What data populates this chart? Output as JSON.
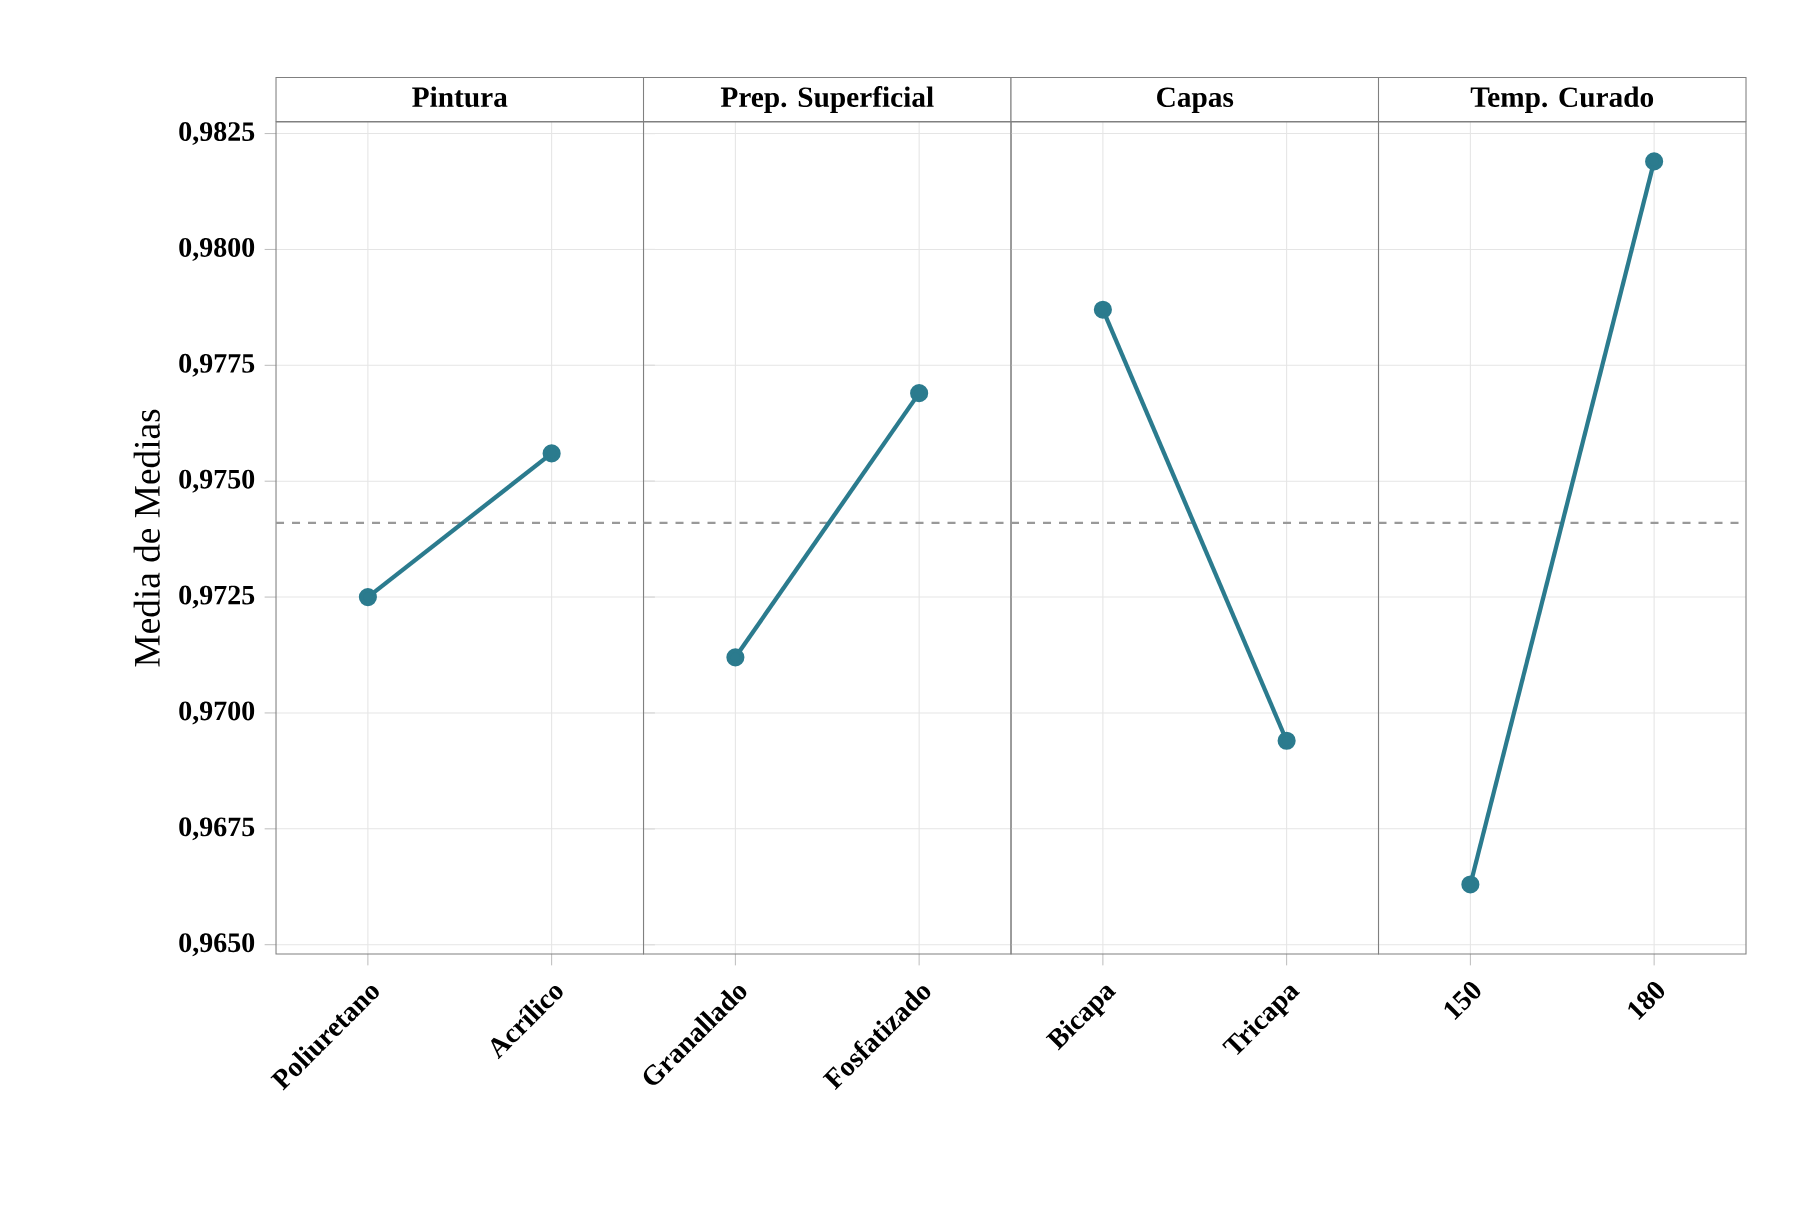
{
  "chart_data": [
    {
      "type": "line",
      "title": "Pintura",
      "ylabel": "Media de Medias",
      "categories": [
        "Poliuretano",
        "Acrílico"
      ],
      "values": [
        0.9725,
        0.9756
      ],
      "color": "#2b7b8e",
      "marker": "circle",
      "grid": true,
      "ylim": [
        0.9648,
        0.98275
      ],
      "yticks": [
        {
          "value": 0.965,
          "label": "0,9650"
        },
        {
          "value": 0.9675,
          "label": "0,9675"
        },
        {
          "value": 0.97,
          "label": "0,9700"
        },
        {
          "value": 0.9725,
          "label": "0,9725"
        },
        {
          "value": 0.975,
          "label": "0,9750"
        },
        {
          "value": 0.9775,
          "label": "0,9775"
        },
        {
          "value": 0.98,
          "label": "0,9800"
        },
        {
          "value": 0.9825,
          "label": "0,9825"
        }
      ],
      "ref_lines": [
        {
          "axis": "y",
          "value": 0.9741,
          "color": "#999999",
          "line_style": "dashed"
        }
      ]
    },
    {
      "type": "line",
      "title": "Prep. Superficial",
      "categories": [
        "Granallado",
        "Fosfatizado"
      ],
      "values": [
        0.9712,
        0.9769
      ],
      "color": "#2b7b8e",
      "marker": "circle",
      "grid": true,
      "ylim": [
        0.9648,
        0.98275
      ],
      "tick_labels": "x",
      "yticks": [
        {
          "value": 0.965,
          "label": null
        },
        {
          "value": 0.9675,
          "label": null
        },
        {
          "value": 0.97,
          "label": null
        },
        {
          "value": 0.9725,
          "label": null
        },
        {
          "value": 0.975,
          "label": null
        },
        {
          "value": 0.9775,
          "label": null
        },
        {
          "value": 0.98,
          "label": null
        },
        {
          "value": 0.9825,
          "label": null
        }
      ],
      "ref_lines": [
        {
          "axis": "y",
          "value": 0.9741,
          "color": "#999999",
          "line_style": "dashed"
        }
      ]
    },
    {
      "type": "line",
      "title": "Capas",
      "categories": [
        "Bicapa",
        "Tricapa"
      ],
      "values": [
        0.9787,
        0.9694
      ],
      "color": "#2b7b8e",
      "marker": "circle",
      "grid": true,
      "ylim": [
        0.9648,
        0.98275
      ],
      "tick_labels": "x",
      "yticks": [
        {
          "value": 0.965,
          "label": null
        },
        {
          "value": 0.9675,
          "label": null
        },
        {
          "value": 0.97,
          "label": null
        },
        {
          "value": 0.9725,
          "label": null
        },
        {
          "value": 0.975,
          "label": null
        },
        {
          "value": 0.9775,
          "label": null
        },
        {
          "value": 0.98,
          "label": null
        },
        {
          "value": 0.9825,
          "label": null
        }
      ],
      "ref_lines": [
        {
          "axis": "y",
          "value": 0.9741,
          "color": "#999999",
          "line_style": "dashed"
        }
      ]
    },
    {
      "type": "line",
      "title": "Temp. Curado",
      "categories": [
        "150",
        "180"
      ],
      "values": [
        0.9663,
        0.9819
      ],
      "color": "#2b7b8e",
      "marker": "circle",
      "grid": true,
      "ylim": [
        0.9648,
        0.98275
      ],
      "tick_labels": "x",
      "yticks": [
        {
          "value": 0.965,
          "label": null
        },
        {
          "value": 0.9675,
          "label": null
        },
        {
          "value": 0.97,
          "label": null
        },
        {
          "value": 0.9725,
          "label": null
        },
        {
          "value": 0.975,
          "label": null
        },
        {
          "value": 0.9775,
          "label": null
        },
        {
          "value": 0.98,
          "label": null
        },
        {
          "value": 0.9825,
          "label": null
        }
      ],
      "ref_lines": [
        {
          "axis": "y",
          "value": 0.9741,
          "color": "#999999",
          "line_style": "dashed"
        }
      ]
    }
  ]
}
